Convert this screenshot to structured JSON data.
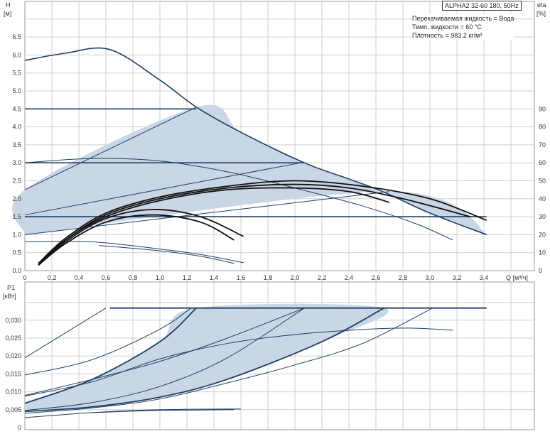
{
  "chart_data": [
    {
      "type": "line",
      "title": "ALPHA2 32-60 180, 50Hz",
      "ylabel": "H",
      "yunit": "[м]",
      "y2label": "eta",
      "y2unit": "[%]",
      "xlabel": "Q [м³/ч]",
      "xlim": [
        0,
        3.77
      ],
      "ylim": [
        0,
        7.0
      ],
      "y2lim": [
        0,
        140
      ],
      "xticks": [
        "0",
        "0,2",
        "0,4",
        "0,6",
        "0,8",
        "1,0",
        "1,2",
        "1,4",
        "1,6",
        "1,8",
        "2,0",
        "2,2",
        "2,4",
        "2,6",
        "2,8",
        "3,0",
        "3,2",
        "3,4"
      ],
      "yticks": [
        "0.0",
        "0.5",
        "1.0",
        "1.5",
        "2.0",
        "2.5",
        "3.0",
        "3.5",
        "4.0",
        "4.5",
        "5.0",
        "5.5",
        "6.0",
        "6.5"
      ],
      "y2ticks": [
        "0",
        "10",
        "20",
        "30",
        "40",
        "50",
        "60",
        "70",
        "80",
        "90"
      ],
      "grid": true,
      "info": [
        "Перекачиваемая жидкость = Вода",
        "Темп. жидкости = 60 °C",
        "Плотность = 983.2 кг/м³"
      ],
      "colors": {
        "curve": "#1f3f63",
        "shade": "#c9d6e5",
        "eta": "#111111",
        "grid": "#cfcfcf"
      },
      "shaded_region": [
        [
          0,
          1.0
        ],
        [
          0,
          2.25
        ],
        [
          1.27,
          4.55
        ],
        [
          1.6,
          3.85
        ],
        [
          2.07,
          3.0
        ],
        [
          2.4,
          2.55
        ],
        [
          2.65,
          2.2
        ],
        [
          3.0,
          1.6
        ],
        [
          3.42,
          1.0
        ],
        [
          2.7,
          2.2
        ],
        [
          0,
          1.0
        ]
      ],
      "head_curves": [
        {
          "points": [
            [
              0,
              5.85
            ],
            [
              0.3,
              6.05
            ],
            [
              0.63,
              6.15
            ],
            [
              1.0,
              5.3
            ],
            [
              1.27,
              4.55
            ],
            [
              1.6,
              3.85
            ],
            [
              2.07,
              3.0
            ],
            [
              2.4,
              2.55
            ],
            [
              2.65,
              2.2
            ],
            [
              3.0,
              1.6
            ],
            [
              3.42,
              1.0
            ]
          ],
          "thick": true
        },
        {
          "points": [
            [
              0,
              4.5
            ],
            [
              1.27,
              4.5
            ]
          ],
          "thick": true
        },
        {
          "points": [
            [
              0,
              3.0
            ],
            [
              2.07,
              3.0
            ]
          ],
          "thick": true
        },
        {
          "points": [
            [
              0,
              1.5
            ],
            [
              3.42,
              1.5
            ]
          ],
          "thick": true
        },
        {
          "points": [
            [
              0,
              2.25
            ],
            [
              1.27,
              4.55
            ]
          ]
        },
        {
          "points": [
            [
              0,
              1.55
            ],
            [
              2.07,
              3.02
            ]
          ]
        },
        {
          "points": [
            [
              0,
              1.0
            ],
            [
              2.7,
              2.2
            ]
          ]
        },
        {
          "points": [
            [
              0,
              3.0
            ],
            [
              0.5,
              3.12
            ],
            [
              1.0,
              3.05
            ],
            [
              1.5,
              2.75
            ],
            [
              2.0,
              2.3
            ],
            [
              2.5,
              1.8
            ],
            [
              2.9,
              1.3
            ],
            [
              3.17,
              0.85
            ]
          ]
        },
        {
          "points": [
            [
              0,
              0.8
            ],
            [
              0.5,
              0.8
            ],
            [
              1.0,
              0.6
            ],
            [
              1.3,
              0.45
            ],
            [
              1.62,
              0.22
            ]
          ]
        },
        {
          "points": [
            [
              0.55,
              0.7
            ],
            [
              1.0,
              0.55
            ],
            [
              1.3,
              0.4
            ],
            [
              1.55,
              0.2
            ]
          ]
        }
      ],
      "eta_curves": [
        {
          "points": [
            [
              0.1,
              4
            ],
            [
              0.3,
              18
            ],
            [
              0.6,
              32
            ],
            [
              1.0,
              41
            ],
            [
              1.5,
              47
            ],
            [
              2.0,
              50
            ],
            [
              2.5,
              47
            ],
            [
              3.0,
              40
            ],
            [
              3.42,
              28
            ]
          ]
        },
        {
          "points": [
            [
              0.1,
              4
            ],
            [
              0.3,
              17
            ],
            [
              0.6,
              31
            ],
            [
              1.0,
              40
            ],
            [
              1.5,
              46
            ],
            [
              2.0,
              48
            ],
            [
              2.4,
              46
            ],
            [
              2.8,
              40
            ],
            [
              3.3,
              30
            ]
          ]
        },
        {
          "points": [
            [
              0.1,
              4
            ],
            [
              0.3,
              17
            ],
            [
              0.6,
              30
            ],
            [
              1.0,
              39
            ],
            [
              1.5,
              45
            ],
            [
              2.0,
              46
            ],
            [
              2.4,
              44
            ],
            [
              2.7,
              38
            ]
          ]
        },
        {
          "points": [
            [
              0.1,
              3
            ],
            [
              0.3,
              16
            ],
            [
              0.6,
              29
            ],
            [
              0.95,
              34
            ],
            [
              1.3,
              30
            ],
            [
              1.62,
              19
            ]
          ]
        },
        {
          "points": [
            [
              0.1,
              3
            ],
            [
              0.3,
              15
            ],
            [
              0.6,
              27
            ],
            [
              0.95,
              31
            ],
            [
              1.3,
              27
            ],
            [
              1.55,
              17
            ]
          ]
        }
      ]
    },
    {
      "type": "line",
      "ylabel": "P1",
      "yunit": "[кВт]",
      "xlim": [
        0,
        3.77
      ],
      "ylim": [
        0,
        0.035
      ],
      "yticks": [
        "0",
        "0,005",
        "0,010",
        "0,015",
        "0,020",
        "0,025",
        "0,030"
      ],
      "grid": true,
      "shaded_region": [
        [
          0,
          0.0068
        ],
        [
          0.5,
          0.0135
        ],
        [
          1.0,
          0.024
        ],
        [
          1.27,
          0.0334
        ],
        [
          2.66,
          0.0334
        ],
        [
          2.2,
          0.024
        ],
        [
          1.5,
          0.0135
        ],
        [
          1.0,
          0.0085
        ],
        [
          0.5,
          0.0058
        ],
        [
          0,
          0.0045
        ]
      ],
      "power_curves": [
        {
          "points": [
            [
              0.63,
              0.0334
            ],
            [
              3.42,
              0.0334
            ]
          ],
          "thick": true
        },
        {
          "points": [
            [
              0,
              0.0195
            ],
            [
              0.6,
              0.0334
            ]
          ]
        },
        {
          "points": [
            [
              0,
              0.0147
            ],
            [
              0.5,
              0.019
            ],
            [
              1.0,
              0.0275
            ],
            [
              1.23,
              0.0334
            ]
          ]
        },
        {
          "points": [
            [
              0,
              0.009
            ],
            [
              0.5,
              0.0135
            ],
            [
              1.0,
              0.0185
            ],
            [
              1.5,
              0.025
            ],
            [
              2.07,
              0.0334
            ]
          ]
        },
        {
          "points": [
            [
              0,
              0.0088
            ],
            [
              0.5,
              0.0128
            ],
            [
              1.0,
              0.0192
            ],
            [
              1.5,
              0.0235
            ],
            [
              2.0,
              0.026
            ],
            [
              2.5,
              0.0274
            ],
            [
              2.85,
              0.0278
            ],
            [
              3.17,
              0.0272
            ]
          ]
        },
        {
          "points": [
            [
              0,
              0.0068
            ],
            [
              0.5,
              0.0135
            ],
            [
              1.0,
              0.024
            ],
            [
              1.27,
              0.0334
            ]
          ],
          "thick": true
        },
        {
          "points": [
            [
              0,
              0.0048
            ],
            [
              0.5,
              0.007
            ],
            [
              1.0,
              0.0115
            ],
            [
              1.5,
              0.0195
            ],
            [
              2.07,
              0.0334
            ]
          ]
        },
        {
          "points": [
            [
              0,
              0.0045
            ],
            [
              0.5,
              0.0058
            ],
            [
              1.0,
              0.0085
            ],
            [
              1.5,
              0.0135
            ],
            [
              2.2,
              0.024
            ],
            [
              2.66,
              0.0334
            ]
          ],
          "thick": true
        },
        {
          "points": [
            [
              0,
              0.004
            ],
            [
              0.5,
              0.0055
            ],
            [
              1.0,
              0.008
            ],
            [
              1.5,
              0.0125
            ],
            [
              2.0,
              0.0175
            ],
            [
              2.5,
              0.0235
            ],
            [
              3.02,
              0.0334
            ]
          ]
        },
        {
          "points": [
            [
              0,
              0.0028
            ],
            [
              0.5,
              0.0042
            ],
            [
              1.0,
              0.005
            ],
            [
              1.6,
              0.0052
            ]
          ]
        },
        {
          "points": [
            [
              0.5,
              0.0042
            ],
            [
              1.0,
              0.0048
            ],
            [
              1.55,
              0.005
            ]
          ]
        }
      ]
    }
  ]
}
